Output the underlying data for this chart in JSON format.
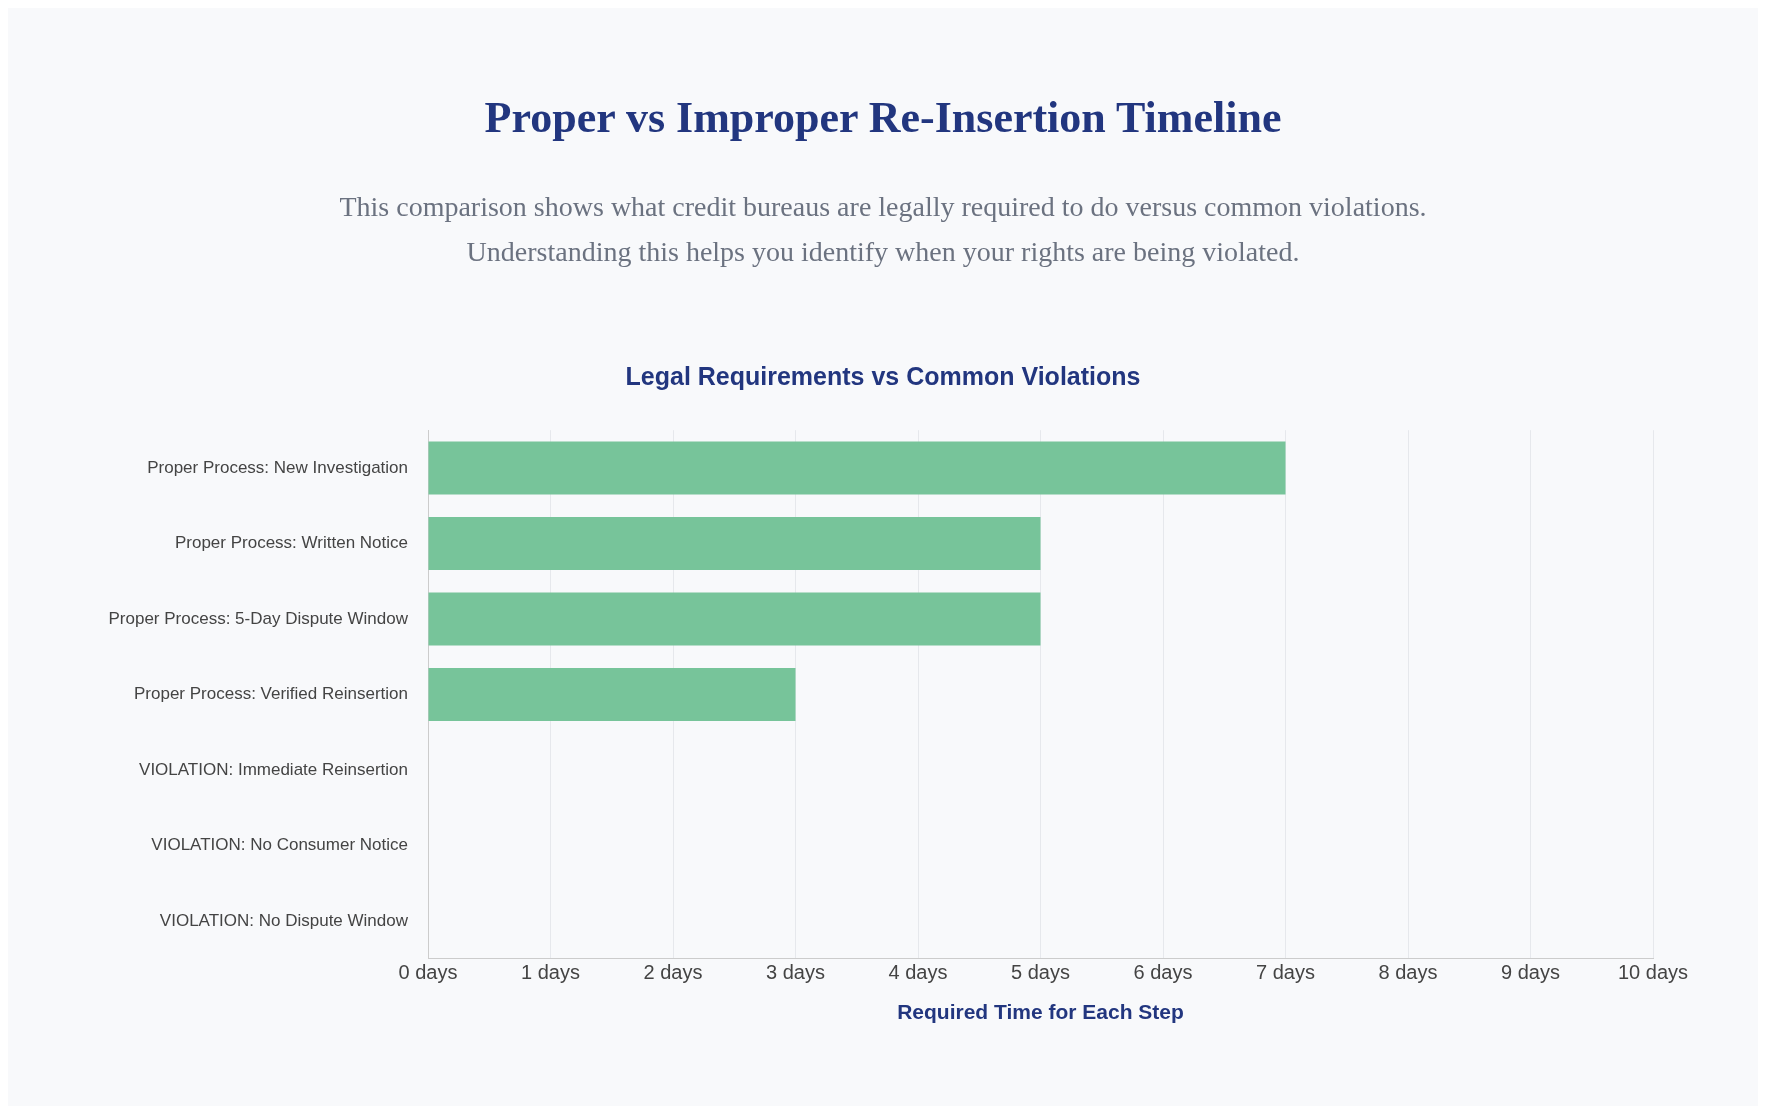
{
  "chart_data": {
    "type": "bar",
    "orientation": "horizontal",
    "title": "Proper vs Improper Re-Insertion Timeline",
    "subtitle": "Legal Requirements vs Common Violations",
    "annotations": [
      "This comparison shows what credit bureaus are legally required to do versus common violations.",
      "Understanding this helps you identify when your rights are being violated."
    ],
    "xlabel": "Required Time for Each Step",
    "categories": [
      "Proper Process: New Investigation",
      "Proper Process: Written Notice",
      "Proper Process: 5-Day Dispute Window",
      "Proper Process: Verified Reinsertion",
      "VIOLATION: Immediate Reinsertion",
      "VIOLATION: No Consumer Notice",
      "VIOLATION: No Dispute Window"
    ],
    "values": [
      7,
      5,
      5,
      3,
      0,
      0,
      0
    ],
    "color": "#77c49a",
    "xlim": [
      0,
      10
    ],
    "xticks": [
      {
        "value": 0,
        "label": "0 days"
      },
      {
        "value": 1,
        "label": "1 days"
      },
      {
        "value": 2,
        "label": "2 days"
      },
      {
        "value": 3,
        "label": "3 days"
      },
      {
        "value": 4,
        "label": "4 days"
      },
      {
        "value": 5,
        "label": "5 days"
      },
      {
        "value": 6,
        "label": "6 days"
      },
      {
        "value": 7,
        "label": "7 days"
      },
      {
        "value": 8,
        "label": "8 days"
      },
      {
        "value": 9,
        "label": "9 days"
      },
      {
        "value": 10,
        "label": "10 days"
      }
    ],
    "grid": "x",
    "legend": false
  }
}
